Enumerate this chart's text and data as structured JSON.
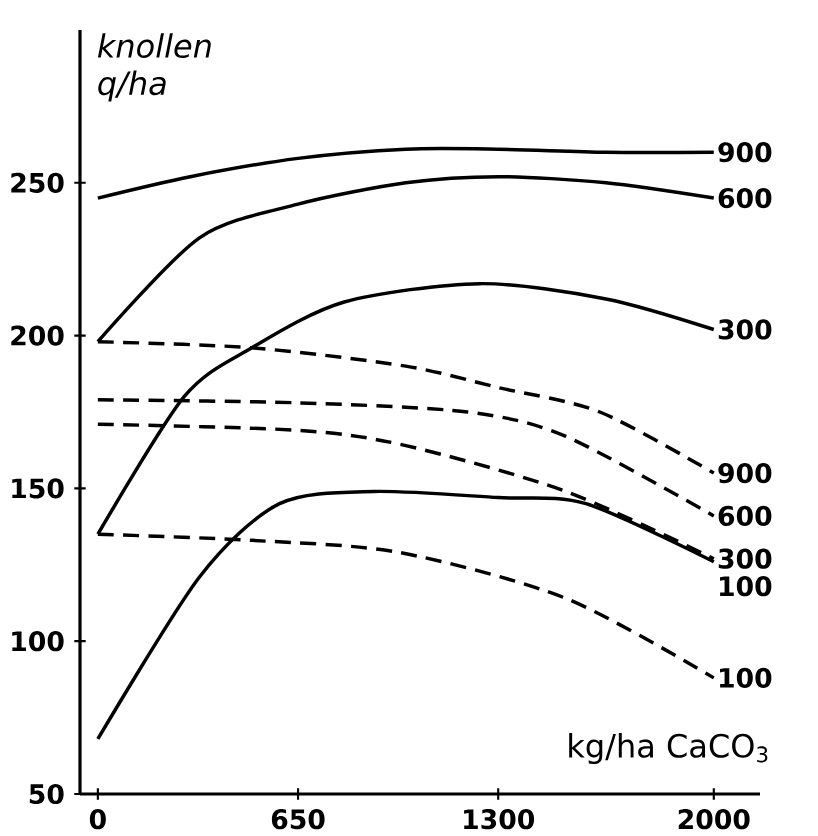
{
  "chart_data": {
    "type": "line",
    "xlabel": "kg/ha CaCO$_{3}$",
    "ylabel": "knollen q/ha",
    "xlim": [
      -58,
      2150
    ],
    "ylim": [
      50,
      300
    ],
    "xticks": [
      0,
      650,
      1300,
      2000
    ],
    "yticks": [
      50,
      100,
      150,
      200,
      250
    ],
    "grid": false,
    "legend": false,
    "marker": "none",
    "series": [
      {
        "name": "900",
        "color": "#000000",
        "line_style": "solid",
        "x": [
          0,
          300,
          650,
          1000,
          1300,
          1650,
          2000
        ],
        "values": [
          245,
          252,
          258,
          261,
          261,
          260,
          260
        ]
      },
      {
        "name": "600",
        "color": "#000000",
        "line_style": "solid",
        "x": [
          0,
          330,
          650,
          1000,
          1300,
          1650,
          2000
        ],
        "values": [
          198,
          232,
          243,
          250,
          252,
          250,
          245
        ]
      },
      {
        "name": "300",
        "color": "#000000",
        "line_style": "solid",
        "x": [
          0,
          280,
          500,
          800,
          1240,
          1650,
          2000
        ],
        "values": [
          135,
          180,
          196,
          211,
          217,
          212,
          202
        ]
      },
      {
        "name": "100",
        "color": "#000000",
        "line_style": "solid",
        "x": [
          0,
          330,
          590,
          895,
          1300,
          1585,
          2000
        ],
        "values": [
          68,
          121,
          145,
          149,
          147,
          145,
          126
        ]
      },
      {
        "name": "900",
        "color": "#000000",
        "line_style": "dashed",
        "x": [
          0,
          500,
          1000,
          1300,
          1630,
          2000
        ],
        "values": [
          198,
          196,
          190,
          183,
          175,
          155
        ]
      },
      {
        "name": "600",
        "color": "#000000",
        "line_style": "dashed",
        "x": [
          0,
          650,
          1200,
          1520,
          2000
        ],
        "values": [
          179,
          178,
          175,
          167,
          141
        ]
      },
      {
        "name": "300",
        "color": "#000000",
        "line_style": "dashed",
        "x": [
          0,
          650,
          1000,
          1520,
          2000
        ],
        "values": [
          171,
          169,
          164,
          149,
          127
        ]
      },
      {
        "name": "100",
        "color": "#000000",
        "line_style": "dashed",
        "x": [
          0,
          500,
          980,
          1520,
          2000
        ],
        "values": [
          135,
          133,
          129,
          114,
          88
        ]
      }
    ]
  }
}
